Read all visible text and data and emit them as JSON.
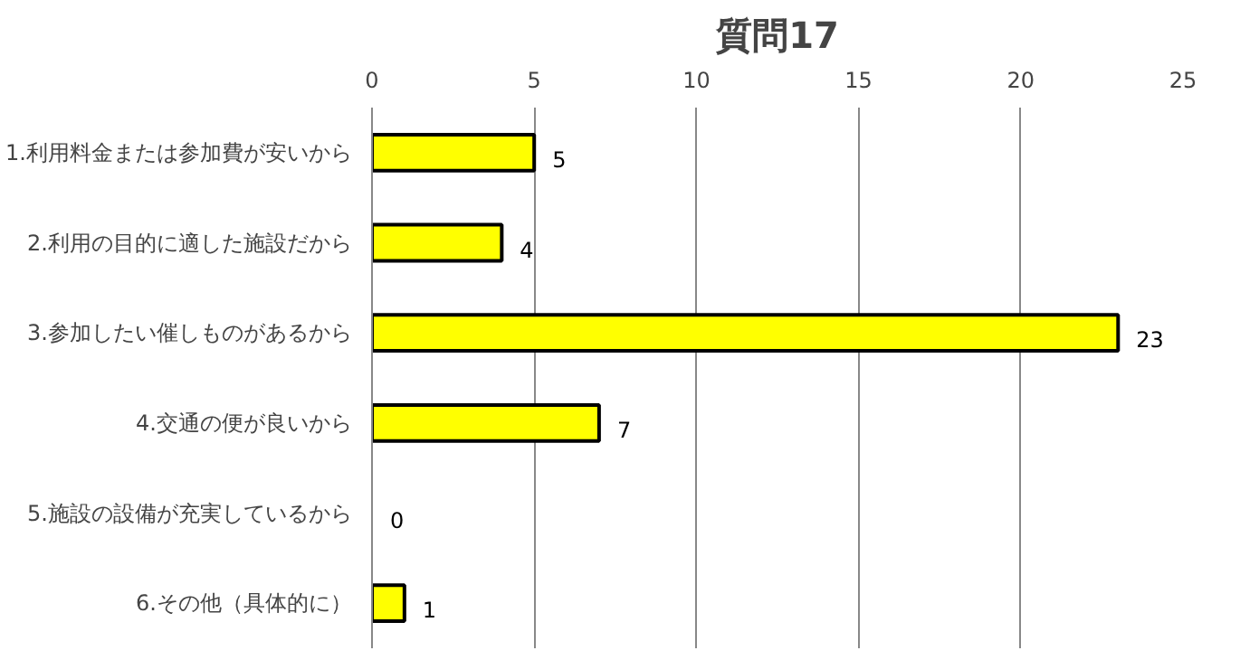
{
  "chart_data": {
    "type": "bar",
    "title": "質問17",
    "orientation": "horizontal",
    "categories": [
      "1.利用料金または参加費が安いから",
      "2.利用の目的に適した施設だから",
      "3.参加したい催しものがあるから",
      "4.交通の便が良いから",
      "5.施設の設備が充実しているから",
      "6.その他（具体的に）"
    ],
    "values": [
      5,
      4,
      23,
      7,
      0,
      1
    ],
    "color": "#ffff00",
    "xlim": [
      0,
      25
    ],
    "xticks": [
      0,
      5,
      10,
      15,
      20,
      25
    ],
    "grid": "x",
    "data_labels": true
  }
}
